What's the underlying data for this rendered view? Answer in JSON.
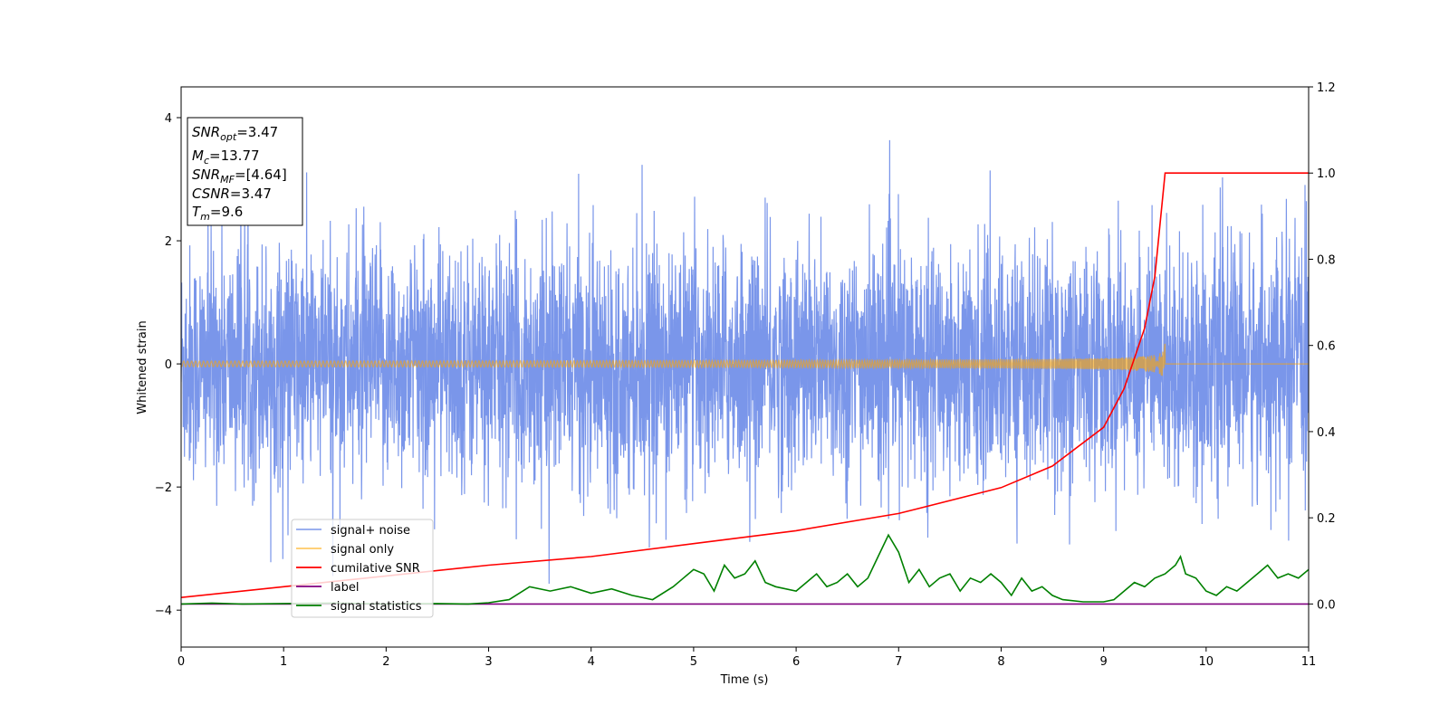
{
  "chart_data": {
    "type": "line",
    "xlabel": "Time (s)",
    "ylabel": "Whitened strain",
    "xlim": [
      0,
      11
    ],
    "ylim_left": [
      -4.6,
      4.5
    ],
    "ylim_right": [
      -0.1,
      1.2
    ],
    "x_ticks": [
      "0",
      "1",
      "2",
      "3",
      "4",
      "5",
      "6",
      "7",
      "8",
      "9",
      "10",
      "11"
    ],
    "y_ticks_left": [
      "−4",
      "−2",
      "0",
      "2",
      "4"
    ],
    "y_ticks_right": [
      "0.0",
      "0.2",
      "0.4",
      "0.6",
      "0.8",
      "1.0",
      "1.2"
    ],
    "grid": false,
    "legend_position": "lower-left",
    "annotation": {
      "snr_opt": {
        "base": "SNR",
        "sub": "opt",
        "value": "=3.47"
      },
      "mc": {
        "base": "M",
        "sub": "c",
        "value": "=13.77"
      },
      "snr_mf": {
        "base": "SNR",
        "sub": "MF",
        "value": "=[4.64]"
      },
      "csnr": {
        "base": "CSNR",
        "value": "=3.47"
      },
      "tm": {
        "base": "T",
        "sub": "m",
        "value": "=9.6"
      }
    },
    "series": [
      {
        "name": "signal+ noise",
        "color": "#4169e1",
        "axis": "left",
        "description_values": {
          "sigma": 0.95,
          "x_range": [
            0,
            11
          ]
        }
      },
      {
        "name": "signal only",
        "color": "#ffa500",
        "axis": "left",
        "merger_time": 9.6,
        "peak_amplitude": 0.6
      },
      {
        "name": "cumilative SNR",
        "color": "#ff0000",
        "axis": "right",
        "x": [
          0,
          1,
          2,
          3,
          4,
          5,
          6,
          7,
          8,
          8.5,
          9,
          9.2,
          9.4,
          9.5,
          9.6,
          11
        ],
        "y": [
          0.015,
          0.04,
          0.065,
          0.09,
          0.11,
          0.14,
          0.17,
          0.21,
          0.27,
          0.32,
          0.41,
          0.5,
          0.64,
          0.76,
          1.0,
          1.0
        ]
      },
      {
        "name": "label",
        "color": "#800080",
        "axis": "right",
        "x": [
          0,
          11
        ],
        "y": [
          0,
          0
        ]
      },
      {
        "name": "signal statistics",
        "color": "#008000",
        "axis": "right",
        "x": [
          0,
          0.3,
          0.6,
          1.0,
          1.5,
          2.0,
          2.5,
          2.8,
          3.0,
          3.2,
          3.4,
          3.6,
          3.8,
          4.0,
          4.2,
          4.4,
          4.6,
          4.8,
          4.9,
          5.0,
          5.1,
          5.2,
          5.3,
          5.4,
          5.5,
          5.6,
          5.7,
          5.8,
          6.0,
          6.1,
          6.2,
          6.3,
          6.4,
          6.5,
          6.6,
          6.7,
          6.8,
          6.9,
          7.0,
          7.1,
          7.2,
          7.3,
          7.4,
          7.5,
          7.6,
          7.7,
          7.8,
          7.9,
          8.0,
          8.1,
          8.2,
          8.3,
          8.4,
          8.5,
          8.6,
          8.8,
          9.0,
          9.1,
          9.2,
          9.3,
          9.4,
          9.5,
          9.6,
          9.7,
          9.75,
          9.8,
          9.9,
          10.0,
          10.1,
          10.2,
          10.3,
          10.4,
          10.5,
          10.6,
          10.7,
          10.8,
          10.9,
          11.0
        ],
        "y": [
          0.0,
          0.002,
          0.0,
          0.001,
          0.002,
          0.0,
          0.001,
          0.0,
          0.003,
          0.01,
          0.04,
          0.03,
          0.04,
          0.025,
          0.035,
          0.02,
          0.01,
          0.04,
          0.06,
          0.08,
          0.07,
          0.03,
          0.09,
          0.06,
          0.07,
          0.1,
          0.05,
          0.04,
          0.03,
          0.05,
          0.07,
          0.04,
          0.05,
          0.07,
          0.04,
          0.06,
          0.11,
          0.16,
          0.12,
          0.05,
          0.08,
          0.04,
          0.06,
          0.07,
          0.03,
          0.06,
          0.05,
          0.07,
          0.05,
          0.02,
          0.06,
          0.03,
          0.04,
          0.02,
          0.01,
          0.005,
          0.005,
          0.01,
          0.03,
          0.05,
          0.04,
          0.06,
          0.07,
          0.09,
          0.11,
          0.07,
          0.06,
          0.03,
          0.02,
          0.04,
          0.03,
          0.05,
          0.07,
          0.09,
          0.06,
          0.07,
          0.06,
          0.08
        ]
      }
    ]
  }
}
